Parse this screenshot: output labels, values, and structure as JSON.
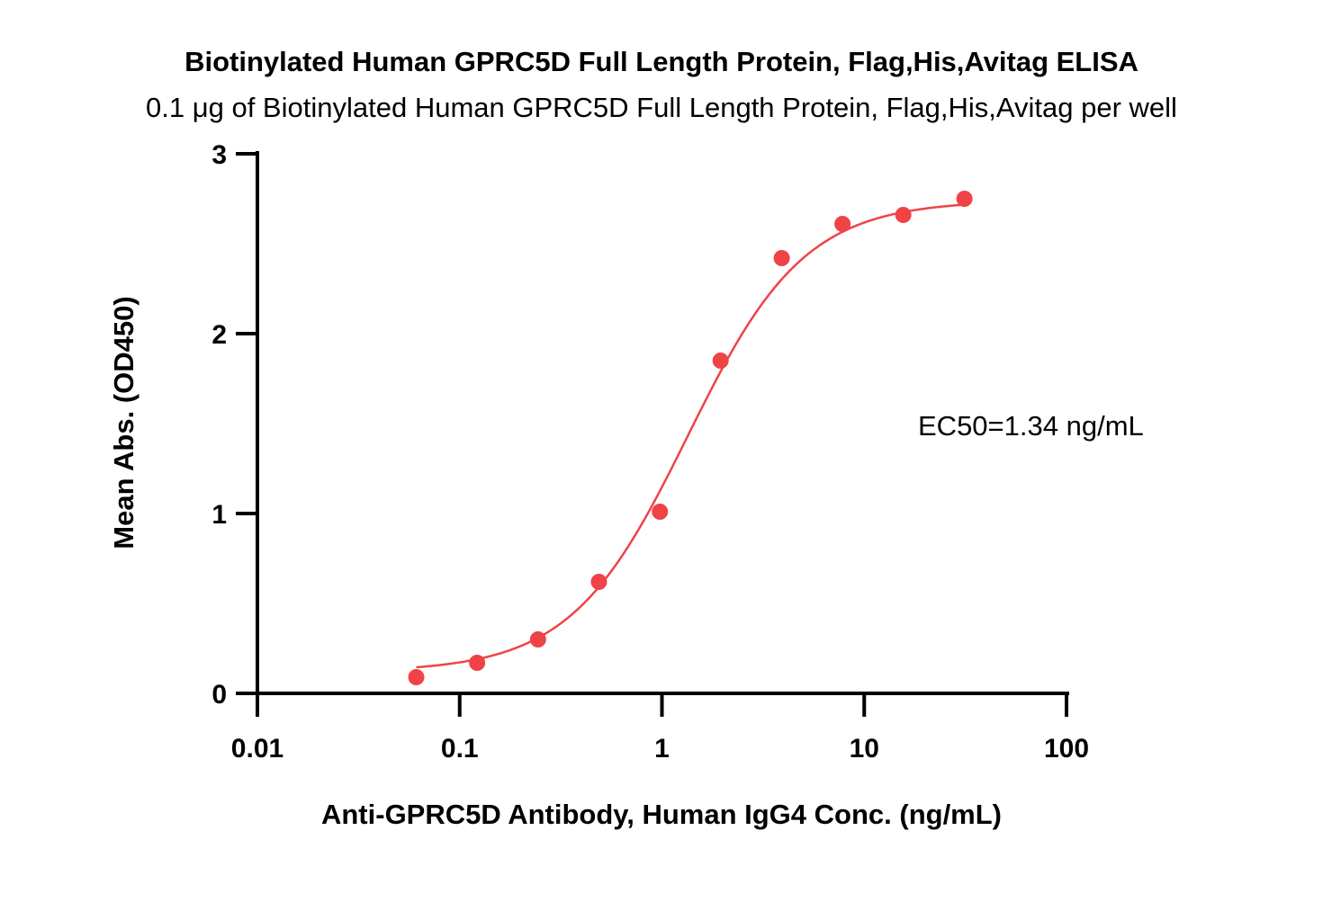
{
  "chart_data": {
    "type": "scatter",
    "title": "Biotinylated Human GPRC5D Full Length Protein, Flag,His,Avitag ELISA",
    "subtitle": "0.1 μg of Biotinylated Human GPRC5D Full Length Protein, Flag,His,Avitag per well",
    "xlabel": "Anti-GPRC5D Antibody, Human IgG4 Conc. (ng/mL)",
    "ylabel": "Mean Abs. (OD450)",
    "x_scale": "log",
    "xlim": [
      0.01,
      100
    ],
    "ylim": [
      0,
      3
    ],
    "x_ticks": [
      0.01,
      0.1,
      1,
      10,
      100
    ],
    "x_tick_labels": [
      "0.01",
      "0.1",
      "1",
      "10",
      "100"
    ],
    "y_ticks": [
      0,
      1,
      2,
      3
    ],
    "y_tick_labels": [
      "0",
      "1",
      "2",
      "3"
    ],
    "grid": false,
    "annotation": "EC50=1.34 ng/mL",
    "color": "#f04347",
    "series": [
      {
        "points": [
          {
            "x": 0.061,
            "y": 0.09
          },
          {
            "x": 0.122,
            "y": 0.17
          },
          {
            "x": 0.244,
            "y": 0.3
          },
          {
            "x": 0.488,
            "y": 0.62
          },
          {
            "x": 0.977,
            "y": 1.01
          },
          {
            "x": 1.95,
            "y": 1.85
          },
          {
            "x": 3.91,
            "y": 2.42
          },
          {
            "x": 7.81,
            "y": 2.61
          },
          {
            "x": 15.6,
            "y": 2.66
          },
          {
            "x": 31.3,
            "y": 2.75
          }
        ],
        "fit": {
          "model": "4PL",
          "bottom": 0.12,
          "top": 2.74,
          "ec50": 1.34,
          "hill": 1.5
        }
      }
    ]
  }
}
